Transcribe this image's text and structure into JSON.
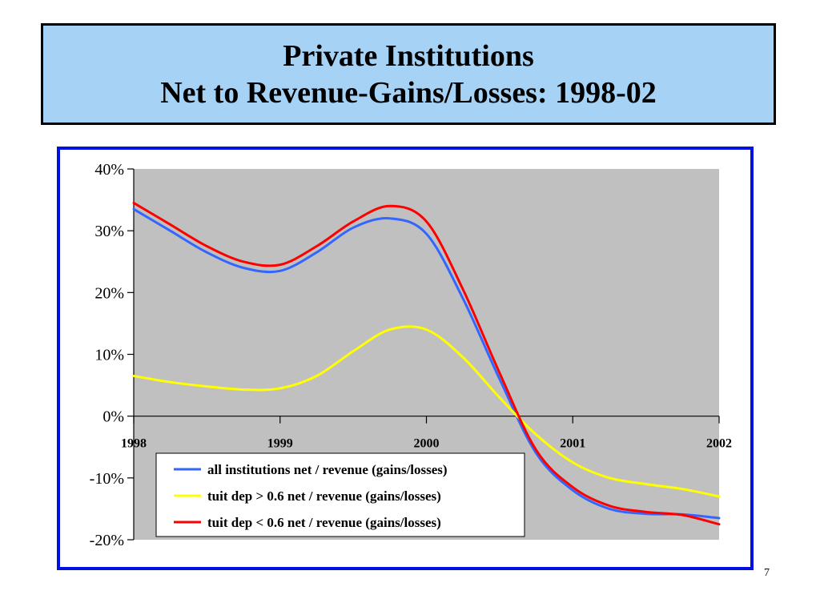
{
  "slide": {
    "title_line1": "Private Institutions",
    "title_line2": "Net to Revenue-Gains/Losses: 1998-02",
    "page_number": "7"
  },
  "colors": {
    "title_bg": "#a5d2f5",
    "frame_border": "#0010e0",
    "plot_bg": "#c0c0c0"
  },
  "chart_data": {
    "type": "line",
    "title": "",
    "xlabel": "",
    "ylabel": "",
    "x_ticks": [
      "1998",
      "1999",
      "2000",
      "2001",
      "2002"
    ],
    "xlim": [
      1998,
      2002
    ],
    "ylim": [
      -20,
      40
    ],
    "y_ticks": [
      {
        "value": 40,
        "label": "40%"
      },
      {
        "value": 30,
        "label": "30%"
      },
      {
        "value": 20,
        "label": "20%"
      },
      {
        "value": 10,
        "label": "10%"
      },
      {
        "value": 0,
        "label": "0%"
      },
      {
        "value": -10,
        "label": "-10%"
      },
      {
        "value": -20,
        "label": "-20%"
      }
    ],
    "grid": false,
    "legend_position": "bottom-center",
    "x": [
      1998.0,
      1998.25,
      1998.5,
      1998.75,
      1999.0,
      1999.25,
      1999.5,
      1999.75,
      2000.0,
      2000.25,
      2000.5,
      2000.75,
      2001.0,
      2001.25,
      2001.5,
      2001.75,
      2002.0
    ],
    "series": [
      {
        "name": "all institutions net / revenue (gains/losses)",
        "color": "#3366ff",
        "values": [
          33.5,
          30.0,
          26.5,
          24.0,
          23.5,
          26.5,
          30.5,
          32.0,
          29.5,
          19.0,
          6.0,
          -6.0,
          -12.0,
          -15.0,
          -15.8,
          -15.9,
          -16.5
        ]
      },
      {
        "name": "tuit dep > 0.6 net / revenue (gains/losses)",
        "color": "#ffff00",
        "values": [
          6.5,
          5.5,
          4.8,
          4.3,
          4.5,
          6.5,
          10.5,
          14.0,
          14.0,
          9.5,
          3.0,
          -3.0,
          -7.5,
          -10.0,
          -11.0,
          -11.8,
          -13.0
        ]
      },
      {
        "name": "tuit dep < 0.6 net / revenue (gains/losses)",
        "color": "#ff0000",
        "values": [
          34.5,
          31.0,
          27.5,
          25.0,
          24.5,
          27.5,
          31.5,
          34.0,
          31.5,
          20.5,
          7.0,
          -5.5,
          -11.5,
          -14.5,
          -15.5,
          -16.0,
          -17.5
        ]
      }
    ]
  }
}
